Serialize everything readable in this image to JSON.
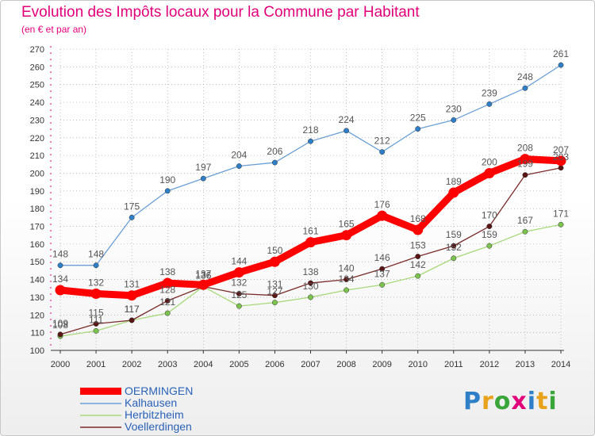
{
  "header": {
    "title": "Evolution des Impôts locaux pour la Commune par Habitant",
    "subtitle": "(en € et par an)"
  },
  "brand": {
    "letters": [
      "P",
      "r",
      "o",
      "x",
      "i",
      "t",
      "i"
    ],
    "colors": [
      "#2e7fc7",
      "#e9a21b",
      "#3aa639",
      "#e2007a",
      "#2e7fc7",
      "#e9a21b",
      "#3aa639"
    ]
  },
  "colors": {
    "title": "#e2007a",
    "legend_text": "#2a62b8",
    "axis": "#333333",
    "grid": "#e2007a"
  },
  "chart_data": {
    "type": "line",
    "title": "Evolution des Impôts locaux pour la Commune par Habitant",
    "subtitle": "(en € et par an)",
    "xlabel": "",
    "ylabel": "",
    "categories": [
      "2000",
      "2001",
      "2002",
      "2003",
      "2004",
      "2005",
      "2006",
      "2007",
      "2008",
      "2009",
      "2010",
      "2011",
      "2012",
      "2013",
      "2014"
    ],
    "ylim": [
      100,
      270
    ],
    "yticks": [
      100,
      110,
      120,
      130,
      140,
      150,
      160,
      170,
      180,
      190,
      200,
      210,
      220,
      230,
      240,
      250,
      260,
      270
    ],
    "legend_position": "bottom-left",
    "series": [
      {
        "name": "OERMINGEN",
        "color": "#ff0000",
        "marker": "#ff0000",
        "weight": "thick",
        "values": [
          134,
          132,
          131,
          138,
          137,
          144,
          150,
          161,
          165,
          176,
          168,
          189,
          200,
          208,
          207
        ],
        "labels": [
          "134",
          "132",
          "131",
          "138",
          "137",
          "144",
          "150",
          "161",
          "165",
          "176",
          "168",
          "189",
          "200",
          "208",
          "207"
        ]
      },
      {
        "name": "Kalhausen",
        "color": "#6b9fd4",
        "marker": "#2e7fc7",
        "weight": "thin",
        "values": [
          148,
          148,
          175,
          190,
          197,
          204,
          206,
          218,
          224,
          212,
          225,
          230,
          239,
          248,
          261
        ],
        "labels": [
          "148",
          "148",
          "175",
          "190",
          "197",
          "204",
          "206",
          "218",
          "224",
          "212",
          "225",
          "230",
          "239",
          "248",
          "261"
        ]
      },
      {
        "name": "Herbitzheim",
        "color": "#a8d87a",
        "marker": "#7bc24f",
        "weight": "thin",
        "values": [
          108,
          111,
          117,
          121,
          136,
          125,
          127,
          130,
          134,
          137,
          142,
          152,
          159,
          167,
          171
        ],
        "labels": [
          "108",
          "111",
          "117",
          "121",
          "136",
          "125",
          "127",
          "130",
          "134",
          "137",
          "142",
          "152",
          "159",
          "167",
          "171"
        ]
      },
      {
        "name": "Voellerdingen",
        "color": "#7a2a2a",
        "marker": "#5a1414",
        "weight": "thin",
        "values": [
          109,
          115,
          117,
          128,
          136,
          132,
          131,
          138,
          140,
          146,
          153,
          159,
          170,
          199,
          203
        ],
        "labels": [
          "109",
          "115",
          "117",
          "128",
          "136",
          "132",
          "131",
          "138",
          "140",
          "146",
          "153",
          "159",
          "170",
          "199",
          "203"
        ]
      }
    ]
  }
}
